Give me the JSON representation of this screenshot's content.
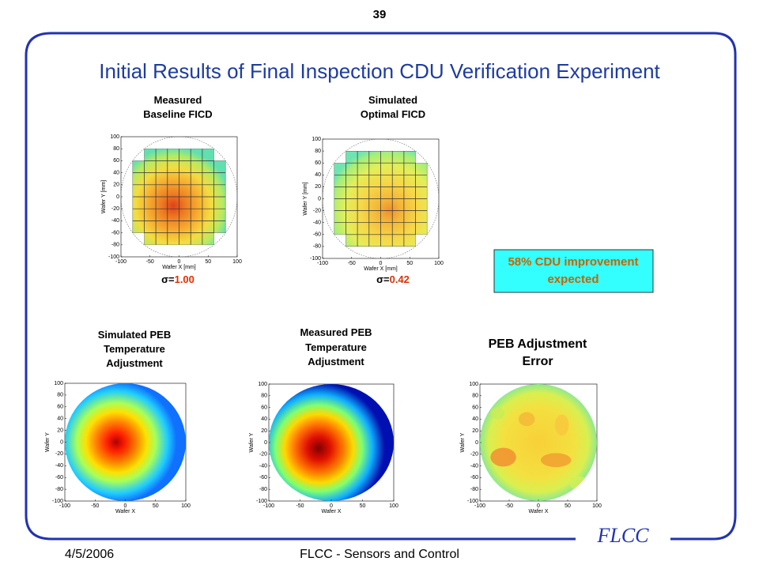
{
  "page_number": "39",
  "title": "Initial Results of Final Inspection CDU Verification Experiment",
  "plots": [
    {
      "label": [
        "Measured",
        "Baseline FICD"
      ],
      "ylabel": "Wafer Y [mm]",
      "xlabel": "Wafer X [mm]",
      "yticks": [
        100,
        80,
        60,
        40,
        20,
        0,
        -20,
        -40,
        -60,
        -80,
        -100
      ],
      "xticks": [
        -100,
        -50,
        0,
        50,
        100
      ],
      "sigma_prefix": "σ=",
      "sigma": "1.00"
    },
    {
      "label": [
        "Simulated",
        "Optimal FICD"
      ],
      "ylabel": "Wafer Y [mm]",
      "xlabel": "Wafer X [mm]",
      "yticks": [
        100,
        80,
        60,
        40,
        20,
        0,
        -20,
        -40,
        -60,
        -80,
        -100
      ],
      "xticks": [
        -100,
        -50,
        0,
        50,
        100
      ],
      "sigma_prefix": "σ=",
      "sigma": "0.42"
    },
    {
      "label": [
        "Simulated PEB",
        "Temperature",
        "Adjustment"
      ],
      "ylabel": "Wafer Y",
      "xlabel": "Wafer X",
      "yticks": [
        100,
        80,
        60,
        40,
        20,
        0,
        -20,
        -40,
        -60,
        -80,
        -100
      ],
      "xticks": [
        -100,
        -50,
        0,
        50,
        100
      ]
    },
    {
      "label": [
        "Measured PEB",
        "Temperature",
        "Adjustment"
      ],
      "ylabel": "Wafer Y",
      "xlabel": "Wafer X",
      "yticks": [
        100,
        80,
        60,
        40,
        20,
        0,
        -20,
        -40,
        -60,
        -80,
        -100
      ],
      "xticks": [
        -100,
        -50,
        0,
        50,
        100
      ]
    },
    {
      "label": [
        "PEB Adjustment",
        "Error"
      ],
      "ylabel": "Wafer Y",
      "xlabel": "Wafer X",
      "yticks": [
        100,
        80,
        60,
        40,
        20,
        0,
        -20,
        -40,
        -60,
        -80,
        -100
      ],
      "xticks": [
        -100,
        -50,
        0,
        50,
        100
      ]
    }
  ],
  "callout": [
    "58% CDU improvement",
    "expected"
  ],
  "footer": {
    "date": "4/5/2006",
    "center": "FLCC - Sensors and Control",
    "logo": "FLCC"
  }
}
